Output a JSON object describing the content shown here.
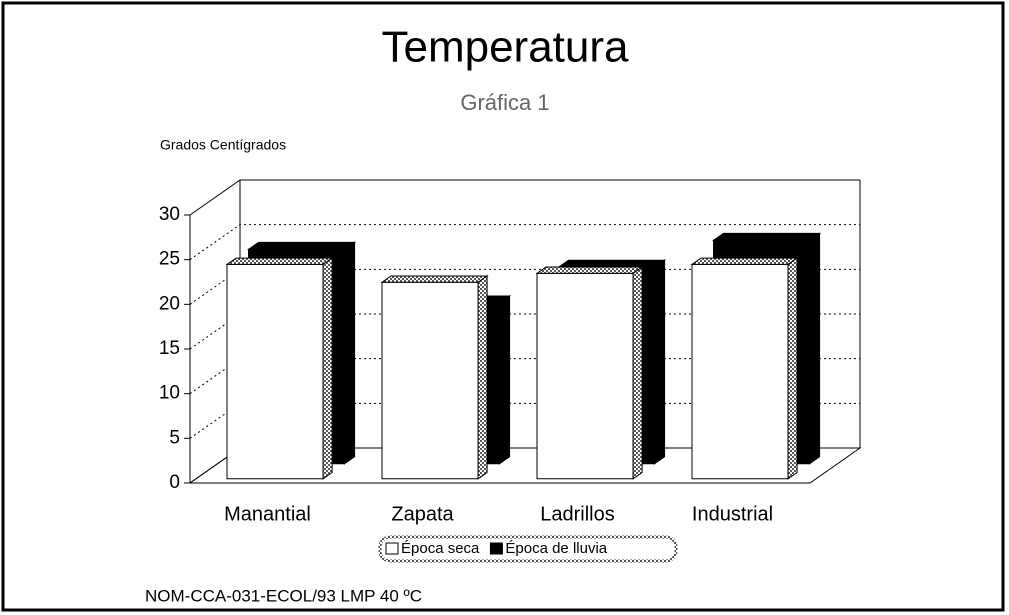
{
  "chart_data": {
    "type": "bar",
    "title": "Temperatura",
    "subtitle": "Gráfica 1",
    "ylabel": "Grados Centígrados",
    "categories": [
      "Manantial",
      "Zapata",
      "Ladrillos",
      "Industrial"
    ],
    "series": [
      {
        "name": "Época seca",
        "color": "#ffffff",
        "values": [
          24,
          22,
          23,
          24
        ]
      },
      {
        "name": "Época de lluvia",
        "color": "#000000",
        "values": [
          24,
          18,
          22,
          25
        ]
      }
    ],
    "ylim": [
      0,
      30
    ],
    "yticks": [
      0,
      5,
      10,
      15,
      20,
      25,
      30
    ],
    "grid": true,
    "legend": "bottom",
    "note": "NOM-CCA-031-ECOL/93 LMP 40 ºC"
  }
}
